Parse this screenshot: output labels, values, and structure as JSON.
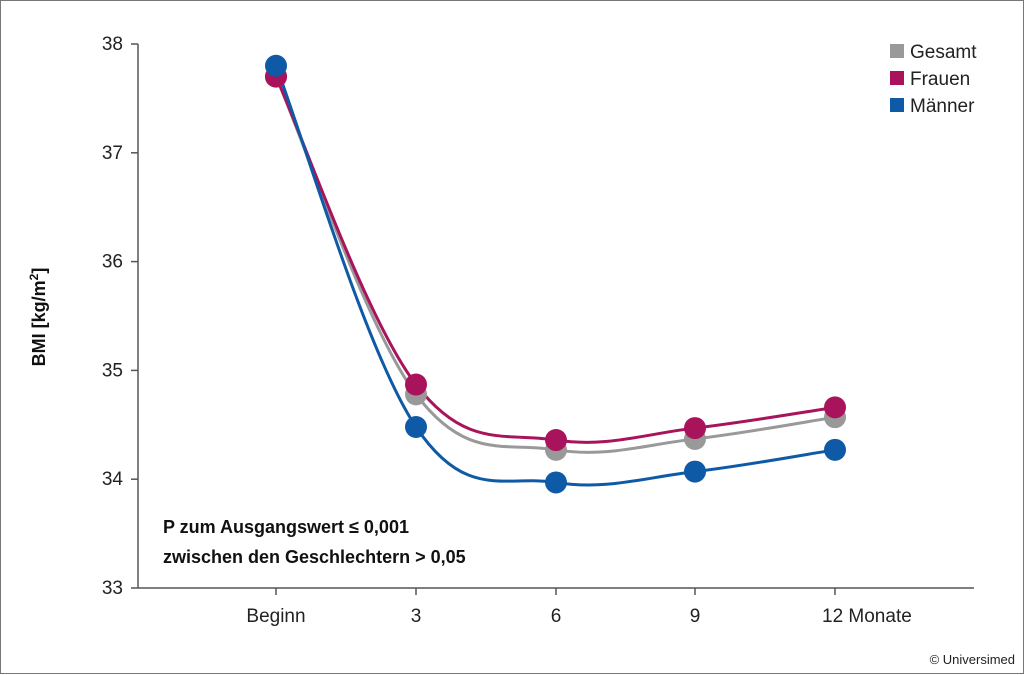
{
  "chart_data": {
    "type": "line",
    "categories": [
      "Beginn",
      "3",
      "6",
      "9",
      "12 Monate"
    ],
    "series": [
      {
        "name": "Gesamt",
        "color": "#999999",
        "values": [
          37.7,
          34.78,
          34.27,
          34.37,
          34.57
        ]
      },
      {
        "name": "Frauen",
        "color": "#a8135c",
        "values": [
          37.7,
          34.87,
          34.36,
          34.47,
          34.66
        ]
      },
      {
        "name": "Männer",
        "color": "#0f5aa6",
        "values": [
          37.8,
          34.48,
          33.97,
          34.07,
          34.27
        ]
      }
    ],
    "ylabel_main": "BMI [kg/m",
    "ylabel_sup": "2",
    "ylabel_close": "]",
    "ylim": [
      33,
      38
    ],
    "yticks": [
      33,
      34,
      35,
      36,
      37,
      38
    ],
    "grid": false,
    "legend_position": "top-right",
    "annotations": [
      "P zum Ausgangswert ≤ 0,001",
      "zwischen den Geschlechtern > 0,05"
    ]
  },
  "credit": "© Universimed"
}
